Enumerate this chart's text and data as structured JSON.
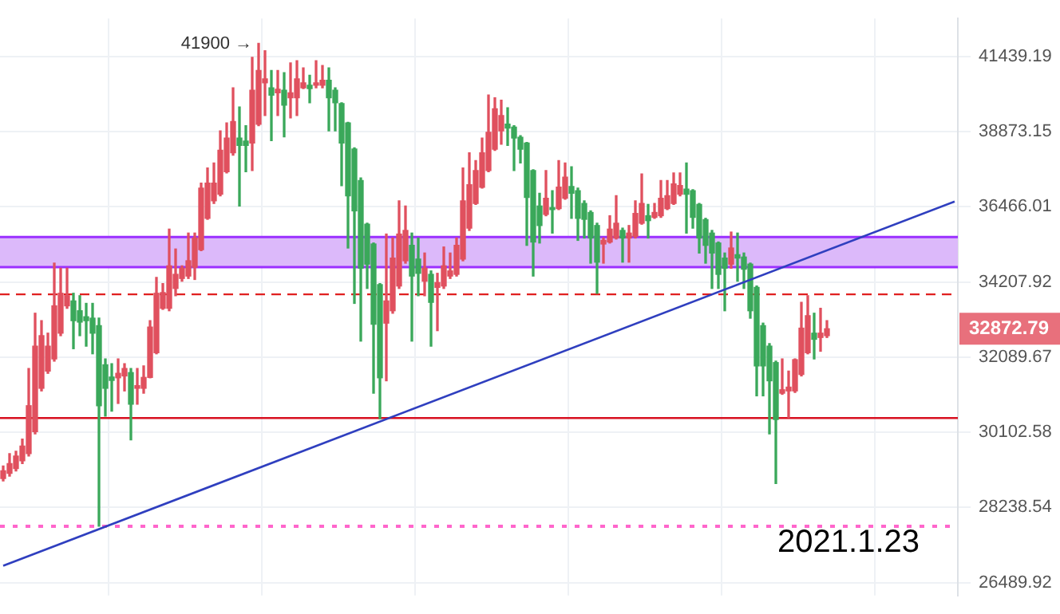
{
  "chart_data": {
    "type": "candlestick",
    "log": true,
    "grid": true,
    "legend": false,
    "categories": [
      null,
      null,
      null,
      null,
      null,
      null,
      null,
      null,
      null,
      null,
      null,
      null,
      null,
      null,
      null,
      null,
      null,
      null,
      null,
      null,
      null,
      null,
      null,
      null,
      null,
      null,
      null,
      null,
      null,
      null,
      null,
      null,
      null,
      null,
      null,
      null,
      null,
      null,
      null,
      null,
      null,
      null,
      null,
      null,
      null,
      null,
      null,
      null,
      null,
      null,
      null,
      null,
      null,
      null,
      null,
      null,
      null,
      null,
      null,
      null,
      null,
      null,
      null,
      null,
      null,
      null,
      null,
      null,
      null,
      null,
      null,
      null,
      null,
      null,
      null,
      null,
      null,
      null,
      null,
      null,
      null,
      null,
      null,
      null,
      null,
      null,
      null,
      null,
      null,
      null,
      null,
      null,
      null,
      null,
      null,
      null,
      null,
      null,
      null,
      null,
      null,
      null,
      null,
      null,
      null,
      null,
      null,
      null,
      null,
      null,
      null,
      null,
      null,
      null,
      null,
      null,
      null,
      null,
      null,
      null,
      null,
      null,
      null,
      null,
      null,
      null,
      null,
      null,
      null,
      null,
      null,
      null,
      null,
      null,
      null,
      null,
      null,
      null,
      null,
      null,
      null,
      null,
      null,
      null,
      null,
      null,
      null,
      null,
      null,
      null
    ],
    "ohlc": [
      [
        28940,
        29250,
        28880,
        29130
      ],
      [
        29070,
        29560,
        29000,
        29310
      ],
      [
        29190,
        29620,
        29130,
        29500
      ],
      [
        29380,
        29930,
        29310,
        29750
      ],
      [
        29560,
        31780,
        29500,
        30790
      ],
      [
        30120,
        33310,
        30060,
        32390
      ],
      [
        31250,
        33100,
        31180,
        32680
      ],
      [
        31710,
        32750,
        31650,
        32390
      ],
      [
        32040,
        34760,
        31980,
        33520
      ],
      [
        32750,
        34610,
        32680,
        33880
      ],
      [
        33520,
        34610,
        33450,
        33810
      ],
      [
        33660,
        33880,
        32320,
        33100
      ],
      [
        33380,
        33810,
        32680,
        33060
      ],
      [
        33210,
        33590,
        32390,
        33100
      ],
      [
        33170,
        33590,
        32180,
        32750
      ],
      [
        32960,
        33170,
        27790,
        30790
      ],
      [
        31880,
        32040,
        30520,
        31250
      ],
      [
        31550,
        31910,
        30650,
        31460
      ],
      [
        31530,
        32040,
        30850,
        31650
      ],
      [
        31580,
        31910,
        31180,
        31780
      ],
      [
        31670,
        31780,
        29910,
        30830
      ],
      [
        31250,
        31780,
        30830,
        31320
      ],
      [
        31250,
        31850,
        31120,
        31540
      ],
      [
        31540,
        33100,
        31530,
        32920
      ],
      [
        32210,
        34340,
        32180,
        33880
      ],
      [
        33450,
        34160,
        33420,
        33900
      ],
      [
        33450,
        35780,
        33380,
        34680
      ],
      [
        34020,
        35180,
        33810,
        34430
      ],
      [
        34310,
        34680,
        34230,
        34610
      ],
      [
        34380,
        35660,
        34310,
        34830
      ],
      [
        34640,
        35660,
        34280,
        35510
      ],
      [
        35160,
        37210,
        35130,
        37050
      ],
      [
        36110,
        37690,
        36080,
        37210
      ],
      [
        36650,
        37850,
        36570,
        37210
      ],
      [
        36860,
        38900,
        36810,
        38260
      ],
      [
        37570,
        39160,
        37530,
        38660
      ],
      [
        38180,
        40350,
        38100,
        39210
      ],
      [
        38660,
        39700,
        36490,
        38420
      ],
      [
        38560,
        39070,
        37570,
        38420
      ],
      [
        38500,
        41410,
        37610,
        40270
      ],
      [
        39120,
        41900,
        39070,
        40950
      ],
      [
        40520,
        41640,
        39410,
        40660
      ],
      [
        40350,
        40950,
        38580,
        40100
      ],
      [
        40180,
        40950,
        39410,
        40300
      ],
      [
        40270,
        40870,
        38700,
        39760
      ],
      [
        40010,
        41210,
        39330,
        40180
      ],
      [
        40010,
        41290,
        39410,
        40660
      ],
      [
        40350,
        41040,
        40320,
        40520
      ],
      [
        40440,
        40780,
        39840,
        40320
      ],
      [
        40440,
        41290,
        40350,
        40520
      ],
      [
        40440,
        41120,
        40350,
        40610
      ],
      [
        40610,
        41040,
        38900,
        40010
      ],
      [
        40270,
        40350,
        38900,
        39840
      ],
      [
        39810,
        39840,
        37130,
        38500
      ],
      [
        39160,
        39180,
        35210,
        36810
      ],
      [
        38300,
        38340,
        33590,
        36340
      ],
      [
        37290,
        37370,
        32530,
        34610
      ],
      [
        35930,
        35960,
        34020,
        34730
      ],
      [
        35330,
        35360,
        31120,
        33000
      ],
      [
        34130,
        34160,
        30450,
        31530
      ],
      [
        33030,
        35630,
        31450,
        33660
      ],
      [
        33380,
        35510,
        33310,
        34910
      ],
      [
        34090,
        36650,
        34020,
        35630
      ],
      [
        34830,
        36490,
        34760,
        35740
      ],
      [
        35290,
        35660,
        32530,
        34380
      ],
      [
        34880,
        35510,
        33810,
        34460
      ],
      [
        34230,
        35060,
        33810,
        34610
      ],
      [
        34430,
        34530,
        32390,
        33620
      ],
      [
        34050,
        34460,
        32820,
        34190
      ],
      [
        34090,
        35240,
        34020,
        34680
      ],
      [
        34380,
        35060,
        34310,
        34530
      ],
      [
        34430,
        35510,
        34380,
        35290
      ],
      [
        34880,
        37690,
        34830,
        36650
      ],
      [
        35810,
        38180,
        35740,
        37160
      ],
      [
        36570,
        37930,
        36540,
        37610
      ],
      [
        37080,
        38660,
        37050,
        38180
      ],
      [
        37610,
        40100,
        37570,
        38850
      ],
      [
        38300,
        40010,
        38260,
        39640
      ],
      [
        38900,
        39930,
        38460,
        39410
      ],
      [
        39120,
        39670,
        38420,
        38990
      ],
      [
        39020,
        39070,
        37610,
        38660
      ],
      [
        38690,
        38740,
        37850,
        38300
      ],
      [
        38500,
        38520,
        35290,
        36760
      ],
      [
        37610,
        37630,
        34380,
        35390
      ],
      [
        36490,
        36890,
        35360,
        35890
      ],
      [
        36230,
        37610,
        36190,
        36730
      ],
      [
        36440,
        36970,
        35660,
        36380
      ],
      [
        36410,
        37930,
        36380,
        37080
      ],
      [
        36730,
        37850,
        36700,
        37400
      ],
      [
        37100,
        37730,
        36110,
        36890
      ],
      [
        36970,
        37050,
        35440,
        36110
      ],
      [
        36570,
        36650,
        35510,
        36080
      ],
      [
        36290,
        36340,
        34760,
        35510
      ],
      [
        35890,
        35960,
        33880,
        34790
      ],
      [
        35330,
        35510,
        34760,
        35440
      ],
      [
        35390,
        36190,
        35360,
        35780
      ],
      [
        35510,
        36810,
        35480,
        35960
      ],
      [
        35740,
        35810,
        34790,
        35510
      ],
      [
        35510,
        35890,
        34790,
        35660
      ],
      [
        35560,
        36650,
        35510,
        36260
      ],
      [
        35960,
        37500,
        35930,
        36570
      ],
      [
        36190,
        36540,
        35510,
        36040
      ],
      [
        36140,
        36570,
        36110,
        36290
      ],
      [
        36190,
        37290,
        36140,
        36730
      ],
      [
        36410,
        37290,
        36380,
        36810
      ],
      [
        36570,
        37530,
        36540,
        37180
      ],
      [
        36860,
        37530,
        36810,
        37130
      ],
      [
        37020,
        37850,
        35660,
        36860
      ],
      [
        36970,
        37000,
        35810,
        36140
      ],
      [
        36540,
        36570,
        35060,
        35510
      ],
      [
        36070,
        36110,
        34760,
        35290
      ],
      [
        35660,
        35740,
        34020,
        35060
      ],
      [
        35360,
        35390,
        34020,
        34430
      ],
      [
        34910,
        35060,
        33380,
        34610
      ],
      [
        34730,
        35690,
        34610,
        35210
      ],
      [
        35010,
        35660,
        34230,
        34910
      ],
      [
        34940,
        35060,
        34020,
        34580
      ],
      [
        34730,
        34760,
        33170,
        33380
      ],
      [
        34050,
        34090,
        31050,
        31850
      ],
      [
        32960,
        33030,
        31050,
        31850
      ],
      [
        32390,
        32460,
        30060,
        31450
      ],
      [
        31940,
        31980,
        28820,
        30430
      ],
      [
        31120,
        32040,
        31090,
        31210
      ],
      [
        31180,
        31710,
        30480,
        31280
      ],
      [
        31180,
        32040,
        31140,
        32020
      ],
      [
        31620,
        33620,
        31580,
        32890
      ],
      [
        32210,
        33810,
        32180,
        33240
      ],
      [
        32750,
        33310,
        32040,
        32580
      ],
      [
        32630,
        33450,
        32250,
        32750
      ],
      [
        32680,
        33100,
        32630,
        32872.79
      ],
      null,
      null,
      null,
      null,
      null,
      null,
      null,
      null,
      null,
      null,
      null,
      null,
      null,
      null,
      null,
      null,
      null,
      null,
      null,
      null
    ],
    "series": [
      {
        "type": "line",
        "color": "#2f3fbf",
        "values": [
          26870,
          null,
          null,
          null,
          null,
          null,
          null,
          null,
          null,
          null,
          null,
          null,
          null,
          null,
          null,
          null,
          null,
          null,
          null,
          null,
          null,
          null,
          null,
          null,
          null,
          null,
          null,
          null,
          null,
          null,
          null,
          null,
          null,
          null,
          null,
          null,
          null,
          null,
          null,
          null,
          null,
          null,
          null,
          null,
          null,
          null,
          null,
          null,
          null,
          null,
          null,
          null,
          null,
          null,
          null,
          null,
          null,
          null,
          null,
          null,
          null,
          null,
          null,
          null,
          null,
          null,
          null,
          null,
          null,
          null,
          null,
          null,
          null,
          null,
          null,
          null,
          null,
          null,
          null,
          null,
          null,
          null,
          null,
          null,
          null,
          null,
          null,
          null,
          null,
          null,
          null,
          null,
          null,
          null,
          null,
          null,
          null,
          null,
          null,
          null,
          null,
          null,
          null,
          null,
          null,
          null,
          null,
          null,
          null,
          null,
          null,
          null,
          null,
          null,
          null,
          null,
          null,
          null,
          null,
          null,
          null,
          null,
          null,
          null,
          null,
          null,
          null,
          null,
          null,
          null,
          null,
          null,
          null,
          null,
          null,
          null,
          null,
          null,
          null,
          null,
          null,
          null,
          null,
          null,
          null,
          null,
          null,
          null,
          null,
          36630
        ]
      }
    ],
    "ylim": [
      26200,
      42800
    ],
    "yticks": [
      26489.92,
      28238.54,
      30102.58,
      32089.67,
      34207.92,
      36466.01,
      38873.15,
      41439.19
    ],
    "bands": [
      {
        "axis": "y",
        "from": 34640,
        "to": 35540,
        "color": "#dcb9fa"
      }
    ],
    "ref_lines": [
      {
        "axis": "y",
        "value": 35540,
        "color": "#9b30ff",
        "line_style": "solid"
      },
      {
        "axis": "y",
        "value": 34640,
        "color": "#9b30ff",
        "line_style": "solid"
      },
      {
        "axis": "y",
        "value": 33850,
        "color": "#e02020",
        "line_style": "dashed"
      },
      {
        "axis": "y",
        "value": 30470,
        "color": "#d81020",
        "line_style": "solid"
      },
      {
        "axis": "y",
        "value": 27790,
        "color": "#ff66cc",
        "line_style": "dotted"
      }
    ],
    "annotations": [
      "41900 →",
      "2021.1.23",
      "32872.79"
    ]
  }
}
